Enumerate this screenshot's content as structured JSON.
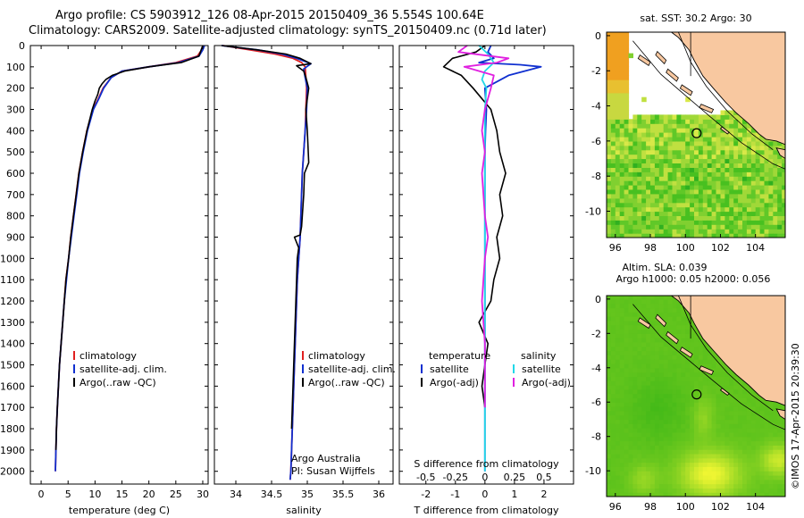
{
  "title_line1": "Argo profile: CS 5903912_126 08-Apr-2015 20150409_36 5.554S 100.64E",
  "title_line2": "Climatology: CARS2009. Satellite-adjusted climatology: synTS_20150409.nc (0.71d later)",
  "footer_credit": "©IMOS 17-Apr-2015 20:39:30",
  "colors": {
    "red": "#e02020",
    "blue": "#1030d0",
    "black": "#000000",
    "cyan": "#20d8e8",
    "magenta": "#e020e0",
    "land": "#f8c8a0",
    "ocean_sla": "#44c020"
  },
  "chart_data": [
    {
      "type": "line",
      "id": "temperature",
      "xlabel": "temperature (deg C)",
      "ylabel": "",
      "xlim": [
        -2,
        31
      ],
      "ylim": [
        2060,
        0
      ],
      "xticks": [
        0,
        5,
        10,
        15,
        20,
        25,
        30
      ],
      "yticks": [
        0,
        100,
        200,
        300,
        400,
        500,
        600,
        700,
        800,
        900,
        1000,
        1100,
        1200,
        1300,
        1400,
        1500,
        1600,
        1700,
        1800,
        1900,
        2000
      ],
      "legend": [
        "climatology",
        "satellite-adj. clim.",
        "Argo(..raw -QC)"
      ],
      "series": [
        {
          "name": "climatology",
          "color": "red",
          "x": [
            30.0,
            29.8,
            29.0,
            25.0,
            20.0,
            15.0,
            13.0,
            11.5,
            10.6,
            9.6,
            8.5,
            7.7,
            7.0,
            6.5,
            6.0,
            5.5,
            5.1,
            4.6,
            4.3,
            4.0,
            3.7,
            3.4,
            3.2,
            3.0,
            2.85,
            2.75,
            2.65
          ],
          "y": [
            0,
            20,
            50,
            80,
            100,
            120,
            150,
            200,
            250,
            300,
            400,
            500,
            600,
            700,
            800,
            900,
            1000,
            1100,
            1200,
            1300,
            1400,
            1500,
            1600,
            1700,
            1800,
            1900,
            2000
          ]
        },
        {
          "name": "satellite-adj. clim.",
          "color": "blue",
          "x": [
            30.3,
            30.0,
            29.3,
            25.5,
            20.0,
            15.0,
            13.0,
            11.6,
            10.7,
            9.7,
            8.6,
            7.8,
            7.1,
            6.6,
            6.1,
            5.6,
            5.1,
            4.7,
            4.3,
            4.0,
            3.7,
            3.4,
            3.2,
            3.0,
            2.85,
            2.75,
            2.65
          ],
          "y": [
            0,
            20,
            50,
            80,
            100,
            120,
            150,
            200,
            250,
            300,
            400,
            500,
            600,
            700,
            800,
            900,
            1000,
            1100,
            1200,
            1300,
            1400,
            1500,
            1600,
            1700,
            1800,
            1900,
            2000
          ]
        },
        {
          "name": "Argo(..raw -QC)",
          "color": "black",
          "x": [
            30.0,
            29.7,
            29.3,
            26.0,
            20.0,
            15.5,
            13.2,
            12.0,
            11.3,
            10.8,
            10.5,
            10.0,
            9.5,
            8.5,
            7.7,
            7.0,
            6.5,
            6.0,
            5.5,
            5.1,
            4.6,
            4.3,
            4.0,
            3.7,
            3.4,
            3.2,
            3.0,
            2.85,
            2.75
          ],
          "y": [
            0,
            20,
            50,
            80,
            100,
            120,
            140,
            160,
            180,
            200,
            230,
            260,
            300,
            400,
            500,
            600,
            700,
            800,
            900,
            1000,
            1100,
            1200,
            1300,
            1400,
            1500,
            1600,
            1700,
            1800,
            1900
          ]
        }
      ]
    },
    {
      "type": "line",
      "id": "salinity",
      "xlabel": "salinity",
      "ylabel": "",
      "xlim": [
        33.7,
        36.2
      ],
      "ylim": [
        2060,
        0
      ],
      "xticks": [
        34,
        34.5,
        35,
        35.5,
        36
      ],
      "xticklabels": [
        "34",
        "34.5",
        "35",
        "35.5",
        "36"
      ],
      "legend": [
        "climatology",
        "satellite-adj. clim.",
        "Argo(..raw -QC)"
      ],
      "annotation": [
        "Argo Australia",
        "PI: Susan Wijffels"
      ],
      "series": [
        {
          "name": "climatology",
          "color": "red",
          "x": [
            33.82,
            34.2,
            34.55,
            34.8,
            34.92,
            34.97,
            34.98,
            34.99,
            34.98,
            34.97,
            34.95,
            34.93,
            34.92,
            34.91,
            34.9,
            34.88,
            34.86,
            34.85,
            34.84,
            34.83,
            34.82,
            34.81,
            34.8,
            34.79,
            34.78,
            34.77,
            34.76
          ],
          "y": [
            0,
            20,
            40,
            60,
            80,
            100,
            150,
            200,
            300,
            400,
            500,
            600,
            700,
            800,
            900,
            1000,
            1100,
            1200,
            1300,
            1400,
            1500,
            1600,
            1700,
            1800,
            1900,
            2000,
            2040
          ]
        },
        {
          "name": "satellite-adj. clim.",
          "color": "blue",
          "x": [
            33.8,
            34.3,
            34.65,
            34.85,
            35.05,
            34.95,
            34.97,
            35.0,
            34.99,
            34.97,
            34.95,
            34.93,
            34.92,
            34.91,
            34.9,
            34.88,
            34.86,
            34.85,
            34.84,
            34.83,
            34.82,
            34.81,
            34.8,
            34.79,
            34.78,
            34.77,
            34.76
          ],
          "y": [
            0,
            20,
            40,
            60,
            85,
            110,
            150,
            200,
            300,
            400,
            500,
            600,
            700,
            800,
            900,
            1000,
            1100,
            1200,
            1300,
            1400,
            1500,
            1600,
            1700,
            1800,
            1900,
            2000,
            2040
          ]
        },
        {
          "name": "Argo(..raw -QC)",
          "color": "black",
          "x": [
            33.8,
            34.3,
            34.7,
            34.9,
            35.05,
            34.85,
            34.95,
            34.98,
            35.02,
            34.98,
            35.0,
            35.02,
            34.96,
            34.95,
            34.93,
            34.92,
            34.9,
            34.82,
            34.88,
            34.86,
            34.85,
            34.84,
            34.83,
            34.82,
            34.81,
            34.8,
            34.79,
            34.78
          ],
          "y": [
            0,
            20,
            40,
            60,
            85,
            95,
            120,
            150,
            200,
            300,
            400,
            550,
            600,
            700,
            800,
            850,
            890,
            900,
            950,
            1000,
            1100,
            1200,
            1300,
            1400,
            1500,
            1600,
            1700,
            1800
          ]
        }
      ]
    },
    {
      "type": "line",
      "id": "differences",
      "xlabel": "T difference from climatology",
      "secondary_xlabel": "S difference from climatology",
      "xlim": [
        -2.9,
        3.0
      ],
      "ylim": [
        2060,
        0
      ],
      "xticks": [
        -2,
        -1,
        0,
        1,
        2
      ],
      "secondary_xticks": [
        -0.5,
        -0.25,
        0,
        0.25,
        0.5
      ],
      "secondary_xticklabels": [
        "-0.5",
        "-0.25",
        "0",
        "0.25",
        "0.5"
      ],
      "legend_titles": [
        "temperature",
        "salinity"
      ],
      "legend": [
        "satellite",
        "Argo(-adj)",
        "satellite",
        "Argo(-adj)"
      ],
      "series": [
        {
          "name": "temperature satellite",
          "color": "blue",
          "x": [
            0.2,
            0.1,
            0.3,
            -0.2,
            1.2,
            1.9,
            0.8,
            0.0,
            0.05,
            0.02,
            0.0,
            0.0,
            0.0,
            0.0,
            0.0,
            0.0,
            0.0,
            0.0,
            0.0,
            0.0,
            0.0,
            0.0
          ],
          "y": [
            0,
            30,
            60,
            80,
            90,
            100,
            140,
            200,
            300,
            400,
            500,
            600,
            700,
            800,
            900,
            1000,
            1200,
            1400,
            1600,
            1800,
            1900,
            2000
          ]
        },
        {
          "name": "temperature Argo(-adj)",
          "color": "black",
          "x": [
            0.0,
            -0.3,
            -1.1,
            -1.4,
            -0.8,
            -0.4,
            0.2,
            0.4,
            0.5,
            0.7,
            0.5,
            0.6,
            0.4,
            0.5,
            0.3,
            0.2,
            -0.2,
            0.1,
            0.0,
            -0.1,
            0.0
          ],
          "y": [
            0,
            30,
            60,
            100,
            140,
            200,
            300,
            400,
            500,
            600,
            700,
            800,
            900,
            1000,
            1100,
            1200,
            1300,
            1400,
            1500,
            1600,
            1700
          ]
        },
        {
          "name": "salinity satellite",
          "color": "cyan",
          "x": [
            -0.2,
            0.1,
            0.3,
            0.0,
            -0.1,
            0.05,
            0.0,
            0.0,
            0.0,
            0.0,
            0.0,
            0.0,
            0.0,
            0.0,
            0.0,
            0.0,
            0.0,
            0.0,
            0.0,
            0.0
          ],
          "y": [
            0,
            40,
            80,
            120,
            160,
            200,
            300,
            400,
            500,
            600,
            800,
            1000,
            1100,
            1200,
            1300,
            1400,
            1600,
            1800,
            1900,
            2000
          ]
        },
        {
          "name": "salinity Argo(-adj)",
          "color": "magenta",
          "x": [
            -0.6,
            -0.9,
            0.8,
            0.4,
            -0.7,
            0.3,
            0.2,
            0.0,
            -0.1,
            0.0,
            -0.1,
            0.0,
            0.1,
            0.0,
            -0.1,
            0.0,
            0.0,
            0.0
          ],
          "y": [
            0,
            30,
            60,
            80,
            100,
            140,
            200,
            300,
            400,
            500,
            600,
            800,
            900,
            1000,
            1200,
            1400,
            1600,
            1700
          ]
        }
      ]
    },
    {
      "type": "heatmap",
      "id": "sst_map",
      "title": "sat. SST: 30.2  Argo: 30",
      "xlim": [
        95.5,
        105.7
      ],
      "ylim": [
        -11.5,
        0.2
      ],
      "xticks": [
        96,
        98,
        100,
        102,
        104
      ],
      "yticks": [
        0,
        -2,
        -4,
        -6,
        -8,
        -10
      ],
      "profile_marker": {
        "lon": 100.64,
        "lat": -5.554
      }
    },
    {
      "type": "heatmap",
      "id": "sla_map",
      "title": "Altim. SLA: 0.039",
      "subtitle": "Argo h1000: 0.05 h2000: 0.056",
      "xlim": [
        95.5,
        105.7
      ],
      "ylim": [
        -11.5,
        0.2
      ],
      "xticks": [
        96,
        98,
        100,
        102,
        104
      ],
      "yticks": [
        0,
        -2,
        -4,
        -6,
        -8,
        -10
      ],
      "profile_marker": {
        "lon": 100.64,
        "lat": -5.554
      }
    }
  ]
}
